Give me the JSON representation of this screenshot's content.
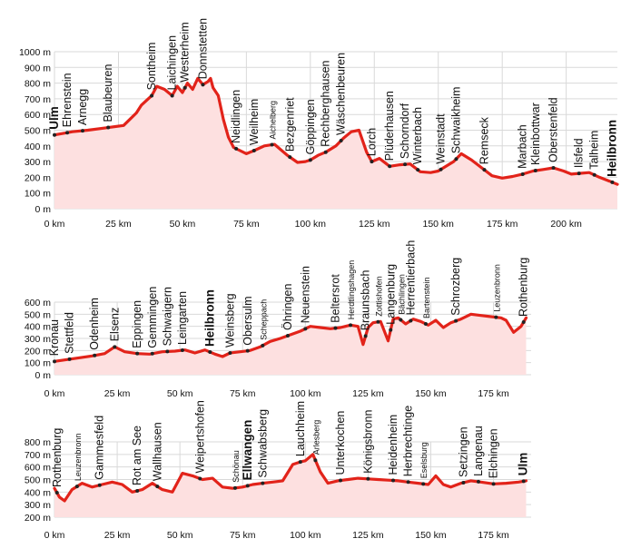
{
  "chart_data": [
    {
      "type": "area",
      "title": "",
      "xlabel": "",
      "ylabel": "",
      "xlim": [
        0,
        220
      ],
      "ylim": [
        0,
        1000
      ],
      "y_ticks": [
        0,
        100,
        200,
        300,
        400,
        500,
        600,
        700,
        800,
        900,
        1000
      ],
      "y_tick_labels": [
        "0 m",
        "100 m",
        "200 m",
        "300 m",
        "400 m",
        "500 m",
        "600 m",
        "700 m",
        "800 m",
        "900 m",
        "1000 m"
      ],
      "x_ticks": [
        0,
        25,
        50,
        75,
        100,
        125,
        150,
        175,
        200
      ],
      "x_tick_labels": [
        "0 km",
        "25 km",
        "50 km",
        "75 km",
        "100 km",
        "125 km",
        "150 km",
        "175 km",
        "200 km"
      ],
      "grid": true,
      "profile": {
        "x": [
          0,
          7,
          13,
          20,
          27,
          32,
          34,
          36,
          38,
          40,
          43,
          46,
          48,
          50,
          52,
          54,
          56,
          58,
          60,
          61,
          62,
          64,
          66,
          68,
          70,
          75,
          78,
          82,
          86,
          91,
          95,
          98,
          100,
          103,
          106,
          110,
          113,
          116,
          119,
          122,
          124,
          127,
          131,
          135,
          139,
          143,
          147,
          150,
          153,
          156,
          159,
          163,
          167,
          171,
          175,
          179,
          183,
          187,
          191,
          195,
          199,
          202,
          205,
          209,
          213,
          217,
          220
        ],
        "y": [
          470,
          490,
          500,
          515,
          530,
          610,
          660,
          690,
          720,
          780,
          760,
          720,
          780,
          740,
          800,
          760,
          830,
          790,
          810,
          830,
          770,
          720,
          570,
          455,
          390,
          350,
          370,
          400,
          410,
          340,
          295,
          300,
          310,
          340,
          360,
          400,
          450,
          490,
          500,
          360,
          300,
          320,
          270,
          280,
          285,
          235,
          230,
          240,
          270,
          300,
          350,
          310,
          260,
          210,
          195,
          205,
          220,
          240,
          250,
          260,
          240,
          220,
          225,
          230,
          200,
          175,
          155
        ]
      },
      "places": [
        {
          "name": "Ulm",
          "km": 0,
          "bold": true
        },
        {
          "name": "Ehrenstein",
          "km": 5,
          "bold": false
        },
        {
          "name": "Arnegg",
          "km": 11,
          "bold": false
        },
        {
          "name": "Blaubeuren",
          "km": 21,
          "bold": false
        },
        {
          "name": "Sontheim",
          "km": 38,
          "bold": false
        },
        {
          "name": "Laichingen",
          "km": 46,
          "bold": false
        },
        {
          "name": "Westerheim",
          "km": 51,
          "bold": false
        },
        {
          "name": "Donnstetten",
          "km": 58,
          "bold": false
        },
        {
          "name": "Neidlingen",
          "km": 71,
          "bold": false
        },
        {
          "name": "Weilheim",
          "km": 78,
          "bold": false
        },
        {
          "name": "Aichelberg",
          "km": 85,
          "bold": false,
          "small": true
        },
        {
          "name": "Bezgenriet",
          "km": 92,
          "bold": false
        },
        {
          "name": "Göppingen",
          "km": 100,
          "bold": false
        },
        {
          "name": "Rechberghausen",
          "km": 106,
          "bold": false
        },
        {
          "name": "Wäschenbeuren",
          "km": 112,
          "bold": false
        },
        {
          "name": "Lorch",
          "km": 124,
          "bold": false
        },
        {
          "name": "Plüderhausen",
          "km": 131,
          "bold": false
        },
        {
          "name": "Schorndorf",
          "km": 137,
          "bold": false
        },
        {
          "name": "Winterbach",
          "km": 142,
          "bold": false
        },
        {
          "name": "Weinstadt",
          "km": 151,
          "bold": false
        },
        {
          "name": "Schwaikheim",
          "km": 157,
          "bold": false
        },
        {
          "name": "Remseck",
          "km": 168,
          "bold": false
        },
        {
          "name": "Marbach",
          "km": 183,
          "bold": false
        },
        {
          "name": "Kleinbottwar",
          "km": 188,
          "bold": false
        },
        {
          "name": "Oberstenfeld",
          "km": 195,
          "bold": false
        },
        {
          "name": "Ilsfeld",
          "km": 205,
          "bold": false
        },
        {
          "name": "Talheim",
          "km": 211,
          "bold": false
        },
        {
          "name": "Heilbronn",
          "km": 218,
          "bold": true
        }
      ]
    },
    {
      "type": "area",
      "title": "",
      "xlabel": "",
      "ylabel": "",
      "xlim": [
        0,
        190
      ],
      "ylim": [
        0,
        600
      ],
      "y_ticks": [
        0,
        100,
        200,
        300,
        400,
        500,
        600
      ],
      "y_tick_labels": [
        "0 m",
        "100 m",
        "200 m",
        "300 m",
        "400 m",
        "500 m",
        "600 m"
      ],
      "x_ticks": [
        0,
        25,
        50,
        75,
        100,
        125,
        150,
        175
      ],
      "x_tick_labels": [
        "0 km",
        "25 km",
        "50 km",
        "75 km",
        "100 km",
        "125 km",
        "150 km",
        "175 km"
      ],
      "grid": true,
      "profile": {
        "x": [
          0,
          5,
          10,
          15,
          20,
          24,
          28,
          33,
          38,
          43,
          48,
          52,
          56,
          60,
          64,
          67,
          70,
          74,
          78,
          82,
          86,
          90,
          94,
          98,
          102,
          106,
          110,
          114,
          118,
          121,
          123,
          125,
          127,
          130,
          133,
          135,
          137,
          140,
          143,
          146,
          149,
          152,
          155,
          158,
          162,
          166,
          170,
          174,
          178,
          180,
          183,
          186,
          188
        ],
        "y": [
          110,
          125,
          140,
          155,
          175,
          230,
          190,
          175,
          170,
          190,
          195,
          205,
          180,
          205,
          170,
          150,
          180,
          190,
          200,
          230,
          275,
          300,
          330,
          360,
          400,
          390,
          380,
          390,
          410,
          400,
          250,
          390,
          430,
          440,
          280,
          460,
          470,
          420,
          460,
          440,
          410,
          450,
          390,
          430,
          460,
          500,
          490,
          480,
          470,
          450,
          350,
          400,
          470
        ]
      },
      "places": [
        {
          "name": "Kronau",
          "km": 0,
          "bold": false
        },
        {
          "name": "Stettfeld",
          "km": 6,
          "bold": false
        },
        {
          "name": "Odenheim",
          "km": 16,
          "bold": false
        },
        {
          "name": "Elsenz",
          "km": 24,
          "bold": false
        },
        {
          "name": "Eppingen",
          "km": 33,
          "bold": false
        },
        {
          "name": "Gemmingen",
          "km": 39,
          "bold": false
        },
        {
          "name": "Schwaigern",
          "km": 45,
          "bold": false
        },
        {
          "name": "Leingarten",
          "km": 51,
          "bold": false
        },
        {
          "name": "Heilbronn",
          "km": 62,
          "bold": true
        },
        {
          "name": "Weinsberg",
          "km": 70,
          "bold": false
        },
        {
          "name": "Obersulm",
          "km": 77,
          "bold": false
        },
        {
          "name": "Scheppach",
          "km": 83,
          "bold": false,
          "small": true
        },
        {
          "name": "Öhringen",
          "km": 93,
          "bold": false
        },
        {
          "name": "Neuenstein",
          "km": 100,
          "bold": false
        },
        {
          "name": "Beltersrot",
          "km": 112,
          "bold": false
        },
        {
          "name": "Herdtlingshagen",
          "km": 118,
          "bold": false,
          "small": true
        },
        {
          "name": "Braunsbach",
          "km": 124,
          "bold": false
        },
        {
          "name": "Zottishofen",
          "km": 129,
          "bold": false,
          "small": true
        },
        {
          "name": "Langenburg",
          "km": 134,
          "bold": false
        },
        {
          "name": "Bächlingen",
          "km": 138,
          "bold": false,
          "small": true
        },
        {
          "name": "Herrentierbach",
          "km": 142,
          "bold": false
        },
        {
          "name": "Bartenstein",
          "km": 148,
          "bold": false,
          "small": true
        },
        {
          "name": "Schrozberg",
          "km": 160,
          "bold": false
        },
        {
          "name": "Leuzenbronn",
          "km": 176,
          "bold": false,
          "small": true
        },
        {
          "name": "Rothenburg",
          "km": 187,
          "bold": false
        }
      ]
    },
    {
      "type": "area",
      "title": "",
      "xlabel": "",
      "ylabel": "",
      "xlim": [
        0,
        190
      ],
      "ylim": [
        200,
        800
      ],
      "y_ticks": [
        200,
        300,
        400,
        500,
        600,
        700,
        800
      ],
      "y_tick_labels": [
        "200 m",
        "300 m",
        "400 m",
        "500 m",
        "600 m",
        "700 m",
        "800 m"
      ],
      "x_ticks": [
        0,
        25,
        50,
        75,
        100,
        125,
        150,
        175
      ],
      "x_tick_labels": [
        "0 km",
        "25 km",
        "50 km",
        "75 km",
        "100 km",
        "125 km",
        "150 km",
        "175 km"
      ],
      "grid": true,
      "profile": {
        "x": [
          0,
          2,
          4,
          7,
          11,
          15,
          19,
          23,
          27,
          31,
          35,
          39,
          43,
          47,
          51,
          55,
          59,
          63,
          67,
          71,
          75,
          79,
          83,
          87,
          91,
          95,
          98,
          100,
          103,
          106,
          109,
          113,
          117,
          121,
          125,
          129,
          133,
          137,
          141,
          145,
          149,
          152,
          155,
          158,
          162,
          166,
          170,
          175,
          180,
          185,
          188
        ],
        "y": [
          430,
          360,
          330,
          420,
          470,
          440,
          460,
          480,
          460,
          400,
          420,
          470,
          420,
          400,
          550,
          530,
          500,
          510,
          440,
          430,
          440,
          460,
          470,
          480,
          490,
          620,
          640,
          650,
          700,
          560,
          470,
          490,
          500,
          510,
          505,
          500,
          495,
          490,
          480,
          470,
          460,
          530,
          460,
          440,
          470,
          490,
          480,
          465,
          470,
          480,
          490
        ]
      },
      "places": [
        {
          "name": "Rothenburg",
          "km": 1,
          "bold": false
        },
        {
          "name": "Leuzenbronn",
          "km": 9,
          "bold": false,
          "small": true
        },
        {
          "name": "Gammesfeld",
          "km": 18,
          "bold": false
        },
        {
          "name": "Rot am See",
          "km": 33,
          "bold": false
        },
        {
          "name": "Wallhausen",
          "km": 41,
          "bold": false
        },
        {
          "name": "Weipertshofen",
          "km": 58,
          "bold": false
        },
        {
          "name": "Schönau",
          "km": 72,
          "bold": false,
          "small": true
        },
        {
          "name": "Ellwangen",
          "km": 77,
          "bold": true
        },
        {
          "name": "Schwabsberg",
          "km": 83,
          "bold": false
        },
        {
          "name": "Lauchheim",
          "km": 98,
          "bold": false
        },
        {
          "name": "Arlesberg",
          "km": 104,
          "bold": false,
          "small": true
        },
        {
          "name": "Unterkochen",
          "km": 114,
          "bold": false
        },
        {
          "name": "Königsbronn",
          "km": 125,
          "bold": false
        },
        {
          "name": "Heidenheim",
          "km": 135,
          "bold": false
        },
        {
          "name": "Herbrechtinge",
          "km": 141,
          "bold": false
        },
        {
          "name": "Eselsburg",
          "km": 147,
          "bold": false,
          "small": true
        },
        {
          "name": "Setzingen",
          "km": 163,
          "bold": false
        },
        {
          "name": "Langenau",
          "km": 169,
          "bold": false
        },
        {
          "name": "Elchingen",
          "km": 175,
          "bold": false
        },
        {
          "name": "Ulm",
          "km": 187,
          "bold": true
        }
      ]
    }
  ]
}
